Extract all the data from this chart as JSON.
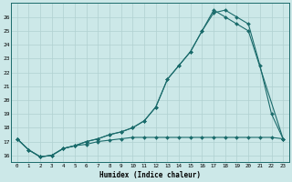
{
  "xlabel": "Humidex (Indice chaleur)",
  "bg_color": "#cce8e8",
  "grid_color": "#b0d0d0",
  "line_color": "#1a6b6b",
  "line1_x": [
    0,
    1,
    2,
    3,
    4,
    5,
    6,
    7,
    8,
    9,
    10,
    11,
    12,
    13,
    14,
    15,
    16,
    17,
    18,
    19,
    20,
    21,
    22,
    23
  ],
  "line1_y": [
    17.2,
    16.4,
    15.9,
    16.0,
    16.5,
    16.7,
    16.8,
    17.0,
    17.1,
    17.2,
    17.3,
    17.3,
    17.3,
    17.3,
    17.3,
    17.3,
    17.3,
    17.3,
    17.3,
    17.3,
    17.3,
    17.3,
    17.3,
    17.2
  ],
  "line2_x": [
    0,
    1,
    2,
    3,
    4,
    5,
    6,
    7,
    8,
    9,
    10,
    11,
    12,
    13,
    14,
    15,
    16,
    17,
    18,
    19,
    20,
    21,
    22,
    23
  ],
  "line2_y": [
    17.2,
    16.4,
    15.9,
    16.0,
    16.5,
    16.7,
    17.0,
    17.2,
    17.5,
    17.7,
    18.0,
    18.5,
    19.5,
    21.5,
    22.5,
    23.5,
    25.0,
    26.3,
    26.5,
    26.0,
    25.5,
    22.5,
    19.0,
    17.2
  ],
  "line3_x": [
    0,
    1,
    2,
    3,
    4,
    5,
    6,
    7,
    8,
    9,
    10,
    11,
    12,
    13,
    14,
    15,
    16,
    17,
    18,
    19,
    20,
    23
  ],
  "line3_y": [
    17.2,
    16.4,
    15.9,
    16.0,
    16.5,
    16.7,
    17.0,
    17.2,
    17.5,
    17.7,
    18.0,
    18.5,
    19.5,
    21.5,
    22.5,
    23.5,
    25.0,
    26.5,
    26.0,
    25.5,
    25.0,
    17.2
  ],
  "xlim": [
    -0.5,
    23.5
  ],
  "ylim": [
    15.5,
    27.0
  ],
  "yticks": [
    16,
    17,
    18,
    19,
    20,
    21,
    22,
    23,
    24,
    25,
    26
  ]
}
